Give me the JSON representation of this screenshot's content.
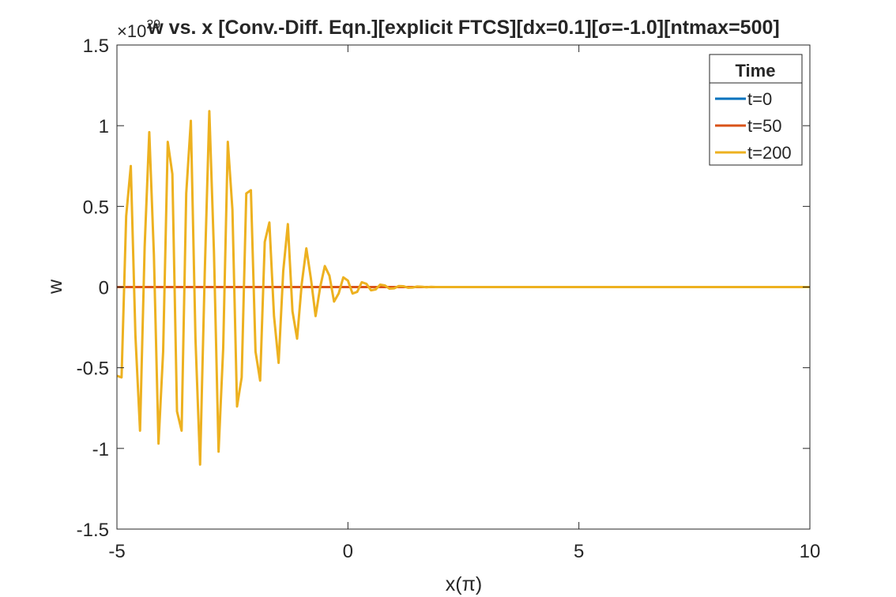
{
  "chart_data": {
    "type": "line",
    "title": "w vs. x [Conv.-Diff. Eqn.][explicit FTCS][dx=0.1][σ=-1.0][ntmax=500]",
    "xlabel": "x(π)",
    "ylabel": "w",
    "y_exponent_label": "×10",
    "y_exponent_value": "29",
    "xlim": [
      -5,
      10
    ],
    "ylim": [
      -1.5,
      1.5
    ],
    "xticks": [
      -5,
      0,
      5,
      10
    ],
    "xtick_labels": [
      "-5",
      "0",
      "5",
      "10"
    ],
    "yticks": [
      -1.5,
      -1,
      -0.5,
      0,
      0.5,
      1,
      1.5
    ],
    "ytick_labels": [
      "-1.5",
      "-1",
      "-0.5",
      "0",
      "0.5",
      "1",
      "1.5"
    ],
    "grid": false,
    "legend": {
      "title": "Time",
      "position": "top-right"
    },
    "series": [
      {
        "name": "t=0",
        "color": "#0072BD",
        "x": [
          -5,
          10
        ],
        "y": [
          0,
          0
        ]
      },
      {
        "name": "t=50",
        "color": "#D95319",
        "x": [
          -5,
          10
        ],
        "y": [
          0,
          0
        ]
      },
      {
        "name": "t=200",
        "color": "#EDB120",
        "x": [
          -5.0,
          -4.9,
          -4.8,
          -4.7,
          -4.6,
          -4.5,
          -4.4,
          -4.3,
          -4.2,
          -4.1,
          -4.0,
          -3.9,
          -3.8,
          -3.7,
          -3.6,
          -3.5,
          -3.4,
          -3.3,
          -3.2,
          -3.1,
          -3.0,
          -2.9,
          -2.8,
          -2.7,
          -2.6,
          -2.5,
          -2.4,
          -2.3,
          -2.2,
          -2.1,
          -2.0,
          -1.9,
          -1.8,
          -1.7,
          -1.6,
          -1.5,
          -1.4,
          -1.3,
          -1.2,
          -1.1,
          -1.0,
          -0.9,
          -0.8,
          -0.7,
          -0.6,
          -0.5,
          -0.4,
          -0.3,
          -0.2,
          -0.1,
          0.0,
          0.1,
          0.2,
          0.3,
          0.4,
          0.5,
          0.6,
          0.7,
          0.8,
          0.9,
          1.0,
          1.1,
          1.2,
          1.3,
          1.4,
          1.5,
          1.6,
          1.7,
          1.8,
          1.9,
          2.0,
          10.0
        ],
        "y": [
          -0.55,
          -0.56,
          0.44,
          0.75,
          -0.3,
          -0.89,
          0.25,
          0.96,
          0.2,
          -0.97,
          -0.4,
          0.9,
          0.7,
          -0.77,
          -0.89,
          0.58,
          1.03,
          -0.32,
          -1.1,
          0.08,
          1.09,
          0.22,
          -1.02,
          -0.38,
          0.9,
          0.48,
          -0.74,
          -0.56,
          0.58,
          0.6,
          -0.4,
          -0.58,
          0.28,
          0.4,
          -0.18,
          -0.47,
          0.1,
          0.39,
          -0.15,
          -0.32,
          0.02,
          0.24,
          0.05,
          -0.18,
          0.0,
          0.13,
          0.07,
          -0.09,
          -0.04,
          0.06,
          0.04,
          -0.04,
          -0.03,
          0.03,
          0.02,
          -0.02,
          -0.015,
          0.015,
          0.01,
          -0.01,
          -0.008,
          0.006,
          0.005,
          -0.004,
          -0.003,
          0.003,
          0.002,
          -0.001,
          0.001,
          0.0,
          0.0,
          0.0
        ]
      }
    ]
  }
}
